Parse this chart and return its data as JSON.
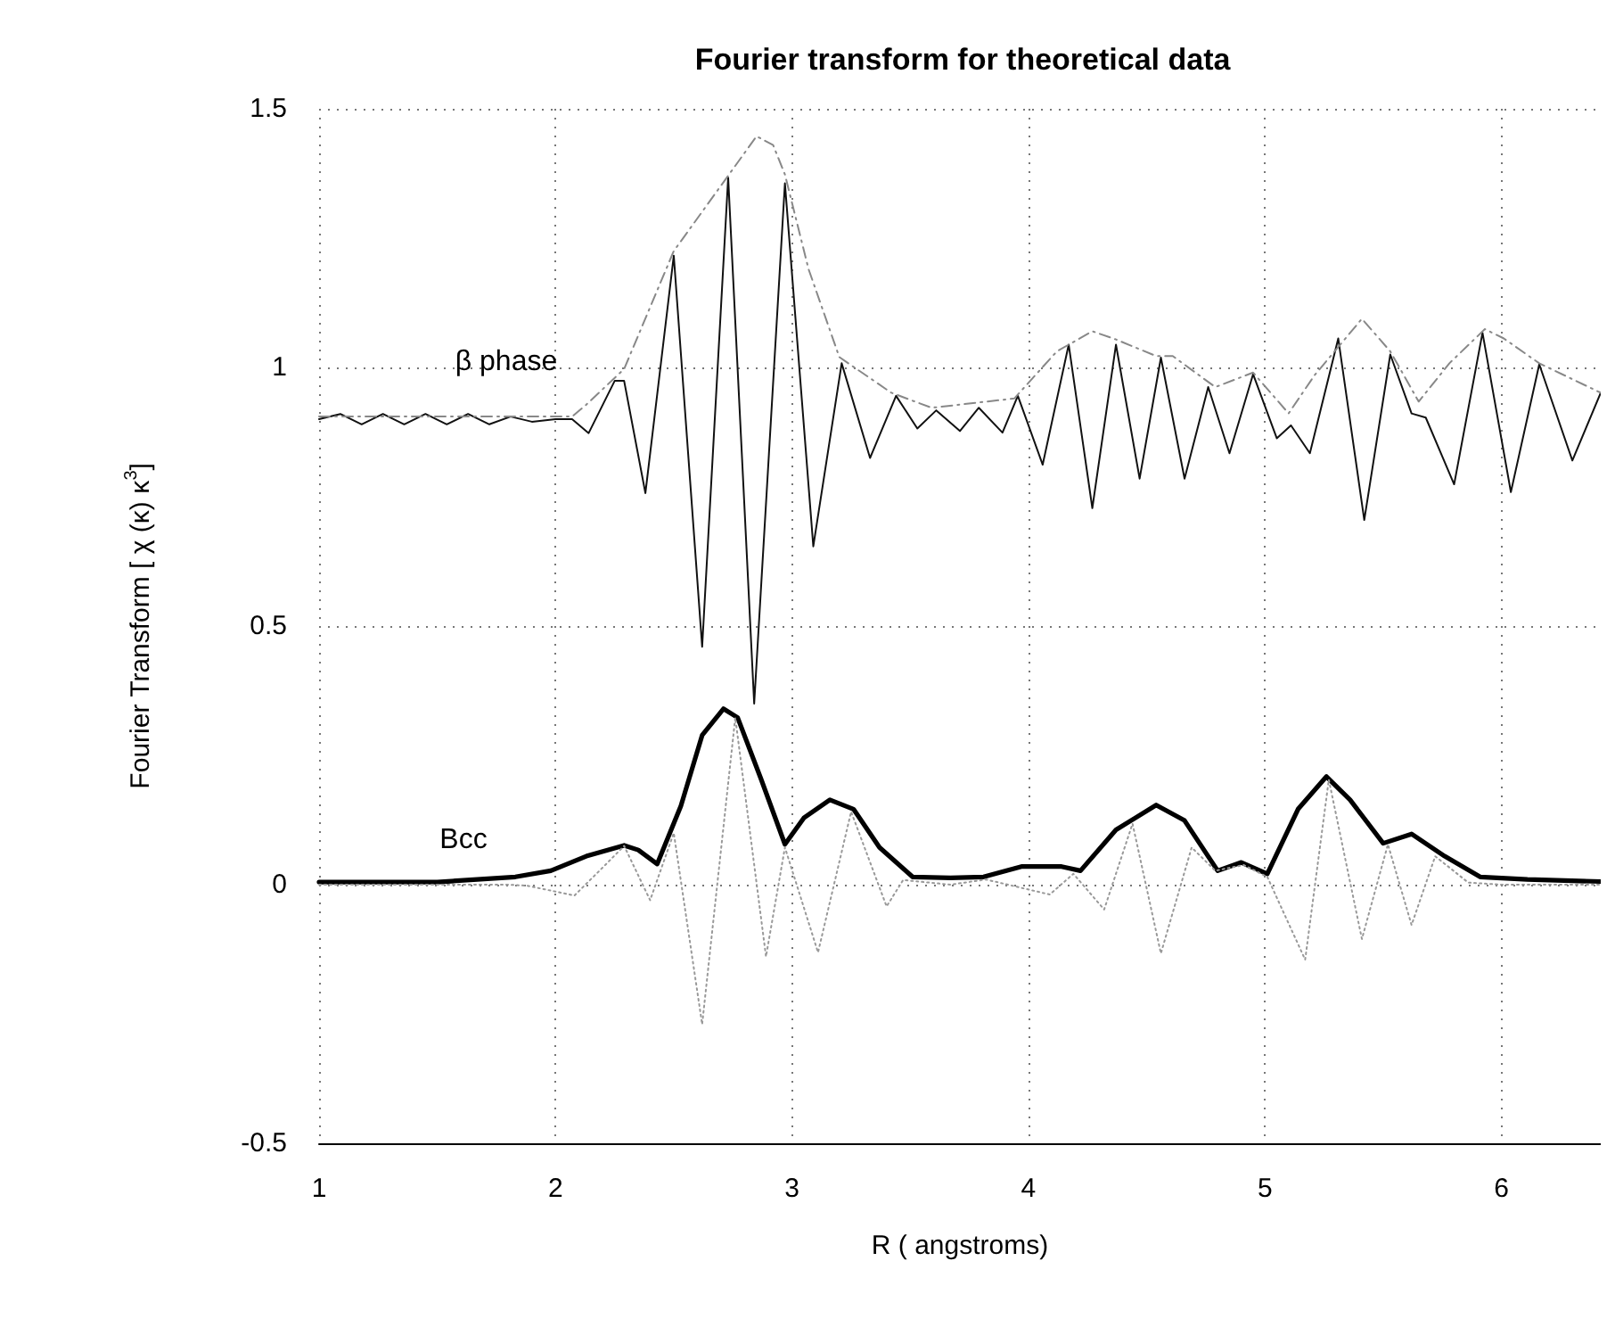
{
  "chart_data": {
    "type": "line",
    "title": "Fourier transform for theoretical data",
    "xlabel": "R ( angstroms)",
    "ylabel": "Fourier Transform [ χ (κ) κ$^{3}$]",
    "xlim": [
      1,
      6.42
    ],
    "ylim": [
      -0.5,
      1.5
    ],
    "xticks": [
      1,
      2,
      3,
      4,
      5,
      6
    ],
    "yticks": [
      -0.5,
      0,
      0.5,
      1,
      1.5
    ],
    "grid": true,
    "marker": "none",
    "annotations": [
      "β phase",
      "Bcc"
    ],
    "series": [
      {
        "color": "#111111",
        "line_style": "solid",
        "x": [
          1.0,
          1.09,
          1.18,
          1.27,
          1.36,
          1.45,
          1.54,
          1.63,
          1.72,
          1.81,
          1.9,
          2.0,
          2.07,
          2.14,
          2.25,
          2.29,
          2.38,
          2.5,
          2.62,
          2.73,
          2.84,
          2.97,
          3.09,
          3.21,
          3.33,
          3.44,
          3.53,
          3.61,
          3.71,
          3.79,
          3.89,
          3.955,
          4.06,
          4.17,
          4.27,
          4.37,
          4.47,
          4.56,
          4.66,
          4.76,
          4.85,
          4.95,
          5.05,
          5.11,
          5.19,
          5.31,
          5.42,
          5.53,
          5.62,
          5.68,
          5.8,
          5.92,
          6.04,
          6.16,
          6.3,
          6.42
        ],
        "values": [
          0.9,
          0.91,
          0.89,
          0.91,
          0.89,
          0.91,
          0.89,
          0.91,
          0.89,
          0.905,
          0.895,
          0.9,
          0.9,
          0.873,
          0.974,
          0.974,
          0.757,
          1.216,
          0.46,
          1.367,
          0.35,
          1.356,
          0.654,
          1.008,
          0.825,
          0.945,
          0.882,
          0.917,
          0.877,
          0.922,
          0.874,
          0.945,
          0.812,
          1.044,
          0.728,
          1.044,
          0.785,
          1.019,
          0.785,
          0.962,
          0.834,
          0.987,
          0.863,
          0.888,
          0.834,
          1.056,
          0.705,
          1.025,
          0.911,
          0.903,
          0.774,
          1.067,
          0.759,
          1.006,
          0.82,
          0.951
        ]
      },
      {
        "color": "#888888",
        "line_style": "dashed",
        "x": [
          1.0,
          2.07,
          2.13,
          2.29,
          2.5,
          2.68,
          2.85,
          2.92,
          2.97,
          3.07,
          3.2,
          3.42,
          3.59,
          3.94,
          4.12,
          4.27,
          4.37,
          4.54,
          4.61,
          4.79,
          4.95,
          5.1,
          5.21,
          5.41,
          5.53,
          5.65,
          5.78,
          5.93,
          6.01,
          6.16,
          6.42
        ],
        "values": [
          0.905,
          0.905,
          0.928,
          0.997,
          1.225,
          1.339,
          1.447,
          1.43,
          1.373,
          1.19,
          1.02,
          0.951,
          0.922,
          0.94,
          1.031,
          1.07,
          1.054,
          1.022,
          1.022,
          0.962,
          0.99,
          0.911,
          0.985,
          1.094,
          1.031,
          0.934,
          1.008,
          1.074,
          1.056,
          1.008,
          0.951
        ]
      },
      {
        "color": "#000000",
        "line_style": "solid",
        "x": [
          1.0,
          1.5,
          1.83,
          1.98,
          2.13,
          2.29,
          2.35,
          2.43,
          2.53,
          2.62,
          2.71,
          2.77,
          2.87,
          2.97,
          3.05,
          3.16,
          3.26,
          3.37,
          3.51,
          3.67,
          3.81,
          3.97,
          4.14,
          4.22,
          4.37,
          4.54,
          4.66,
          4.8,
          4.9,
          5.01,
          5.14,
          5.26,
          5.36,
          5.5,
          5.62,
          5.76,
          5.91,
          6.11,
          6.42
        ],
        "values": [
          0.005,
          0.005,
          0.015,
          0.027,
          0.055,
          0.076,
          0.067,
          0.04,
          0.152,
          0.289,
          0.34,
          0.323,
          0.203,
          0.078,
          0.129,
          0.164,
          0.146,
          0.072,
          0.015,
          0.013,
          0.015,
          0.035,
          0.035,
          0.027,
          0.106,
          0.154,
          0.124,
          0.027,
          0.043,
          0.021,
          0.146,
          0.209,
          0.164,
          0.08,
          0.098,
          0.055,
          0.015,
          0.01,
          0.006
        ]
      },
      {
        "color": "#999999",
        "line_style": "dotted",
        "x": [
          1.0,
          1.8,
          1.88,
          2.08,
          2.21,
          2.29,
          2.4,
          2.5,
          2.62,
          2.76,
          2.89,
          2.97,
          3.11,
          3.25,
          3.4,
          3.47,
          3.67,
          3.82,
          4.09,
          4.19,
          4.32,
          4.44,
          4.56,
          4.69,
          4.79,
          4.91,
          5.01,
          5.17,
          5.27,
          5.41,
          5.52,
          5.62,
          5.72,
          5.86,
          6.0,
          6.42
        ],
        "values": [
          0,
          0,
          -0.002,
          -0.021,
          0.038,
          0.075,
          -0.03,
          0.1,
          -0.27,
          0.323,
          -0.139,
          0.072,
          -0.131,
          0.141,
          -0.042,
          0.009,
          0,
          0.01,
          -0.019,
          0.021,
          -0.048,
          0.118,
          -0.133,
          0.072,
          0.027,
          0.038,
          0.015,
          -0.145,
          0.203,
          -0.105,
          0.078,
          -0.078,
          0.055,
          0.004,
          0,
          0
        ]
      }
    ]
  }
}
